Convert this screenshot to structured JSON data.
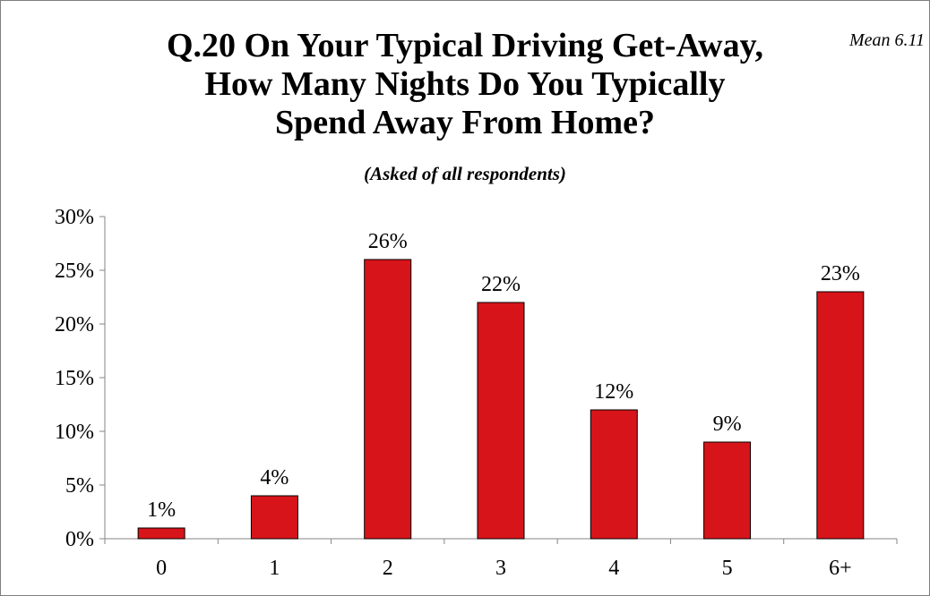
{
  "chart_data": {
    "type": "bar",
    "title_lines": [
      "Q.20 On Your Typical Driving Get-Away,",
      "How Many Nights Do You Typically",
      "Spend Away From Home?"
    ],
    "subtitle": "(Asked of all respondents)",
    "annotation": "Mean 6.11",
    "categories": [
      "0",
      "1",
      "2",
      "3",
      "4",
      "5",
      "6+"
    ],
    "values": [
      1,
      4,
      26,
      22,
      12,
      9,
      23
    ],
    "data_labels": [
      "1%",
      "4%",
      "26%",
      "22%",
      "12%",
      "9%",
      "23%"
    ],
    "y_ticks": [
      0,
      5,
      10,
      15,
      20,
      25,
      30
    ],
    "y_tick_labels": [
      "0%",
      "5%",
      "10%",
      "15%",
      "20%",
      "25%",
      "30%"
    ],
    "ylim": [
      0,
      30
    ],
    "xlabel": "",
    "ylabel": "",
    "grid": false,
    "legend": "none",
    "bar_color": "#d7141a"
  }
}
